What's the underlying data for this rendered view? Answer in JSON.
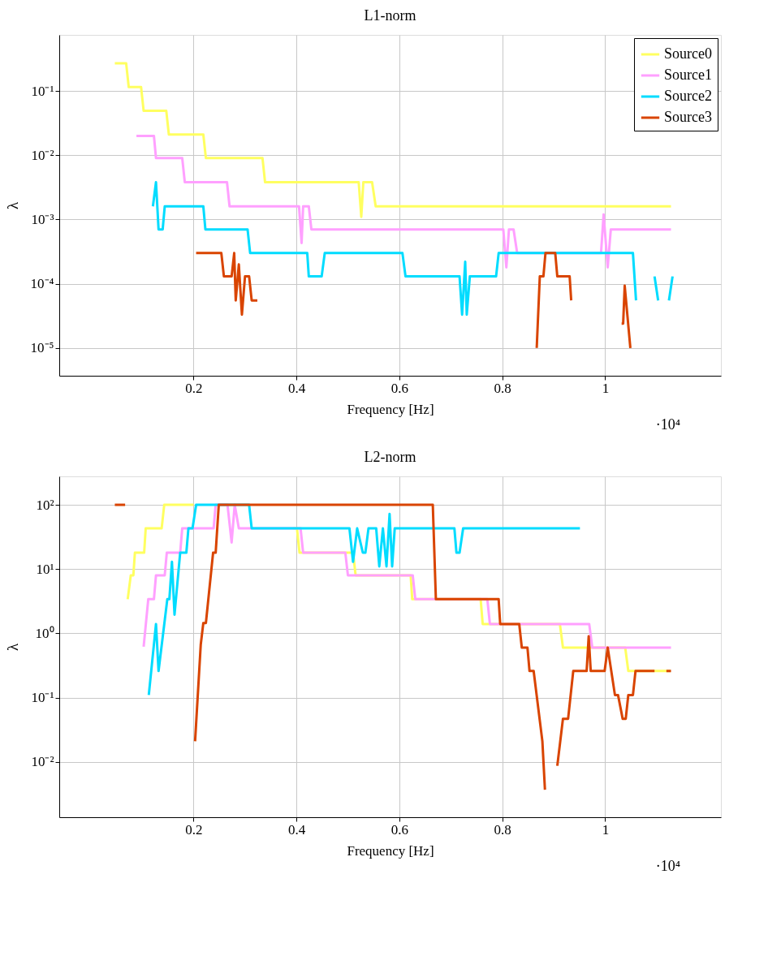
{
  "chart_data": [
    {
      "type": "line",
      "title": "L1-norm",
      "xlabel": "Frequency [Hz]",
      "ylabel": "λ",
      "annotations": [
        "·10⁴"
      ],
      "log": "y",
      "grid": true,
      "legend": "top right",
      "line_style": "solid",
      "marker": "none",
      "xlim": [
        -0.061,
        1.225
      ],
      "xticks": [
        0.2,
        0.4,
        0.6,
        0.8,
        1
      ],
      "ylim": [
        3.7e-06,
        0.745
      ],
      "yticks": [
        {
          "value": 1e-05,
          "label": "10⁻⁵"
        },
        {
          "value": 0.0001,
          "label": "10⁻⁴"
        },
        {
          "value": 0.001,
          "label": "10⁻³"
        },
        {
          "value": 0.01,
          "label": "10⁻²"
        },
        {
          "value": 0.1,
          "label": "10⁻¹"
        }
      ],
      "series": [
        {
          "name": "Source0",
          "color": "#ffff60",
          "x": [
            0.047,
            0.069,
            0.074,
            0.098,
            0.103,
            0.147,
            0.152,
            0.219,
            0.224,
            0.334,
            0.339,
            0.521,
            0.526,
            0.53,
            0.547,
            0.554,
            1.128
          ],
          "values": [
            0.27,
            0.27,
            0.115,
            0.115,
            0.049,
            0.049,
            0.021,
            0.021,
            0.009,
            0.009,
            0.0038,
            0.0038,
            0.0011,
            0.0038,
            0.0038,
            0.0016,
            0.0016
          ]
        },
        {
          "name": "Source1",
          "color": "#ffa0ff",
          "x": [
            0.089,
            0.123,
            0.127,
            0.178,
            0.183,
            0.265,
            0.27,
            0.405,
            0.41,
            0.413,
            0.424,
            0.429,
            0.802,
            0.808,
            0.813,
            0.822,
            0.829,
            0.992,
            0.997,
            1.005,
            1.011,
            1.128
          ],
          "values": [
            0.02,
            0.02,
            0.009,
            0.009,
            0.0038,
            0.0038,
            0.0016,
            0.0016,
            0.00043,
            0.0016,
            0.0016,
            0.0007,
            0.0007,
            0.00018,
            0.0007,
            0.0007,
            0.0003,
            0.0003,
            0.0012,
            0.00018,
            0.0007,
            0.0007
          ]
        },
        {
          "name": "Source2",
          "color": "#00dcff",
          "x": [
            0.121,
            0.127,
            0.132,
            0.14,
            0.144,
            0.219,
            0.223,
            0.305,
            0.31,
            0.421,
            0.424,
            0.449,
            0.455,
            0.606,
            0.612,
            0.717,
            0.722,
            0.728,
            0.731,
            0.737,
            0.788,
            0.793,
            1.054,
            1.06,
            1.08,
            1.096,
            1.103,
            1.114,
            1.124,
            1.131
          ],
          "values": [
            0.0016,
            0.0038,
            0.0007,
            0.0007,
            0.0016,
            0.0016,
            0.0007,
            0.0007,
            0.0003,
            0.0003,
            0.00013,
            0.00013,
            0.0003,
            0.0003,
            0.00013,
            0.00013,
            3.3e-05,
            0.00022,
            3.3e-05,
            0.00013,
            0.00013,
            0.0003,
            0.0003,
            5.5e-05,
            null,
            0.00013,
            5.5e-05,
            null,
            5.5e-05,
            0.00013
          ]
        },
        {
          "name": "Source3",
          "color": "#d94400",
          "x": [
            0.205,
            0.254,
            0.259,
            0.274,
            0.279,
            0.282,
            0.288,
            0.294,
            0.3,
            0.308,
            0.313,
            0.324,
            0.6,
            0.867,
            0.873,
            0.88,
            0.884,
            0.903,
            0.907,
            0.931,
            0.934,
            1.0,
            1.032,
            1.035,
            1.038,
            1.049
          ],
          "values": [
            0.0003,
            0.0003,
            0.00013,
            0.00013,
            0.0003,
            5.5e-05,
            0.0002,
            3.3e-05,
            0.00013,
            0.00013,
            5.5e-05,
            5.5e-05,
            null,
            1e-05,
            0.00013,
            0.00013,
            0.0003,
            0.0003,
            0.00013,
            0.00013,
            5.5e-05,
            null,
            2.4e-05,
            2.4e-05,
            9.3e-05,
            1e-05
          ]
        }
      ]
    },
    {
      "type": "line",
      "title": "L2-norm",
      "xlabel": "Frequency [Hz]",
      "ylabel": "λ",
      "annotations": [
        "·10⁴"
      ],
      "log": "y",
      "grid": true,
      "legend": "top right",
      "line_style": "solid",
      "marker": "none",
      "xlim": [
        -0.061,
        1.225
      ],
      "xticks": [
        0.2,
        0.4,
        0.6,
        0.8,
        1
      ],
      "ylim": [
        0.00138,
        277
      ],
      "yticks": [
        {
          "value": 0.01,
          "label": "10⁻²"
        },
        {
          "value": 0.1,
          "label": "10⁻¹"
        },
        {
          "value": 1,
          "label": "10⁰"
        },
        {
          "value": 10,
          "label": "10¹"
        },
        {
          "value": 100,
          "label": "10²"
        }
      ],
      "series": [
        {
          "name": "Source0",
          "color": "#ffff60",
          "x": [
            0.072,
            0.078,
            0.083,
            0.086,
            0.104,
            0.107,
            0.138,
            0.143,
            0.2,
            0.3,
            0.394,
            0.401,
            0.406,
            0.51,
            0.515,
            0.622,
            0.625,
            0.758,
            0.762,
            0.912,
            0.918,
            1.039,
            1.045,
            1.127
          ],
          "values": [
            3.4,
            8,
            8,
            18,
            18,
            43,
            43,
            100,
            100,
            null,
            43,
            43,
            18,
            18,
            8,
            8,
            3.4,
            3.4,
            1.4,
            1.4,
            0.6,
            0.6,
            0.26,
            0.26
          ]
        },
        {
          "name": "Source1",
          "color": "#ffa0ff",
          "x": [
            0.103,
            0.112,
            0.123,
            0.127,
            0.144,
            0.148,
            0.174,
            0.178,
            0.239,
            0.243,
            0.266,
            0.274,
            0.28,
            0.288,
            0.408,
            0.413,
            0.495,
            0.5,
            0.626,
            0.631,
            0.771,
            0.776,
            0.969,
            0.975,
            1.128
          ],
          "values": [
            0.62,
            3.4,
            3.4,
            8,
            8,
            18,
            18,
            43,
            43,
            100,
            100,
            26,
            100,
            43,
            43,
            18,
            18,
            8,
            8,
            3.4,
            3.4,
            1.4,
            1.4,
            0.6,
            0.6
          ]
        },
        {
          "name": "Source2",
          "color": "#00dcff",
          "x": [
            0.113,
            0.127,
            0.132,
            0.149,
            0.153,
            0.158,
            0.163,
            0.174,
            0.186,
            0.19,
            0.198,
            0.205,
            0.308,
            0.313,
            0.503,
            0.51,
            0.518,
            0.529,
            0.534,
            0.54,
            0.555,
            0.561,
            0.568,
            0.575,
            0.581,
            0.586,
            0.591,
            0.707,
            0.711,
            0.717,
            0.724,
            0.951
          ],
          "values": [
            0.11,
            1.4,
            0.26,
            3.4,
            3.4,
            13,
            1.95,
            18,
            18,
            43,
            43,
            100,
            100,
            43,
            43,
            13,
            43,
            18,
            18,
            43,
            43,
            11,
            43,
            11,
            72,
            11,
            43,
            43,
            18,
            18,
            43,
            43
          ]
        },
        {
          "name": "Source3",
          "color": "#d94400",
          "x": [
            0.047,
            0.067,
            0.1,
            0.203,
            0.214,
            0.219,
            0.224,
            0.238,
            0.243,
            0.249,
            0.665,
            0.671,
            0.793,
            0.796,
            0.833,
            0.838,
            0.849,
            0.853,
            0.861,
            0.878,
            0.883,
            0.895,
            0.907,
            0.918,
            0.928,
            0.938,
            0.964,
            0.968,
            0.972,
            0.999,
            1.005,
            1.019,
            1.025,
            1.034,
            1.04,
            1.045,
            1.054,
            1.059,
            1.096,
            1.11,
            1.119,
            1.128
          ],
          "values": [
            100,
            100,
            null,
            0.021,
            0.67,
            1.45,
            1.45,
            18,
            18,
            100,
            100,
            3.4,
            3.4,
            1.4,
            1.4,
            0.6,
            0.6,
            0.26,
            0.26,
            0.021,
            0.0037,
            null,
            0.0087,
            0.047,
            0.047,
            0.26,
            0.26,
            0.9,
            0.26,
            0.26,
            0.6,
            0.11,
            0.11,
            0.047,
            0.047,
            0.11,
            0.11,
            0.26,
            0.26,
            null,
            0.26,
            0.26
          ]
        }
      ]
    }
  ]
}
